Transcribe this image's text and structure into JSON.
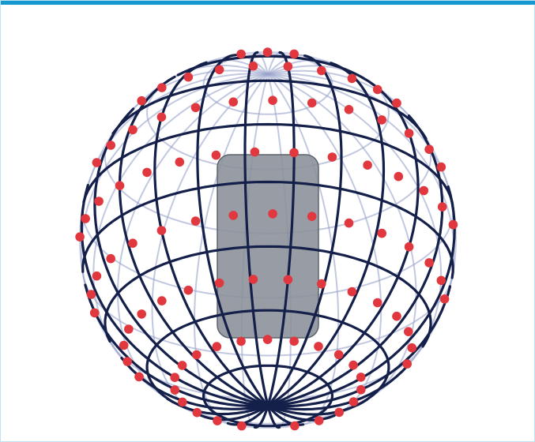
{
  "colors": {
    "header_bar": "#1597cf",
    "frame_border": "#bfe3f2",
    "front_wire": "#14204a",
    "back_wire": "#9aa4cc",
    "point": "#e0383e",
    "panel_fill": "#8a9098",
    "panel_stroke": "#5e646c"
  },
  "diagram": {
    "kind": "sphere-with-sample-points",
    "latitude_rings": 8,
    "meridians": 24,
    "panel": "rounded-rectangle",
    "point_rings": [
      {
        "latitude_deg": 78,
        "count": 16
      },
      {
        "latitude_deg": 60,
        "count": 22
      },
      {
        "latitude_deg": 40,
        "count": 26
      },
      {
        "latitude_deg": 20,
        "count": 28
      },
      {
        "latitude_deg": 0,
        "count": 30
      },
      {
        "latitude_deg": -20,
        "count": 28
      },
      {
        "latitude_deg": -40,
        "count": 26
      },
      {
        "latitude_deg": -60,
        "count": 22
      }
    ]
  }
}
